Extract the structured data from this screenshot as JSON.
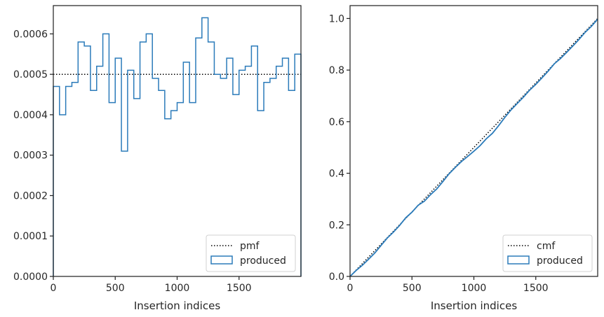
{
  "chart_data": [
    {
      "type": "histogram",
      "xlabel": "Insertion indices",
      "ylabel": "",
      "xlim": [
        0,
        2000
      ],
      "ylim": [
        0,
        0.00067
      ],
      "xticks": [
        "0",
        "500",
        "1000",
        "1500"
      ],
      "yticks": [
        "0.0000",
        "0.0001",
        "0.0002",
        "0.0003",
        "0.0004",
        "0.0005",
        "0.0006"
      ],
      "grid": false,
      "legend_position": "bottom-right",
      "series": [
        {
          "name": "pmf",
          "style": "dotted",
          "color": "#000000",
          "x": [
            0,
            2000
          ],
          "y": [
            0.0005,
            0.0005
          ]
        },
        {
          "name": "produced",
          "style": "step",
          "color": "#2b7bba",
          "bin_edges": [
            0,
            50,
            100,
            150,
            200,
            250,
            300,
            350,
            400,
            450,
            500,
            550,
            600,
            650,
            700,
            750,
            800,
            850,
            900,
            950,
            1000,
            1050,
            1100,
            1150,
            1200,
            1250,
            1300,
            1350,
            1400,
            1450,
            1500,
            1550,
            1600,
            1650,
            1700,
            1750,
            1800,
            1850,
            1900,
            1950,
            2000
          ],
          "values": [
            0.00047,
            0.0004,
            0.00047,
            0.00048,
            0.00058,
            0.00057,
            0.00046,
            0.00052,
            0.0006,
            0.00043,
            0.00054,
            0.00031,
            0.00051,
            0.00044,
            0.00058,
            0.0006,
            0.00049,
            0.00046,
            0.00039,
            0.00041,
            0.00043,
            0.00053,
            0.00043,
            0.00059,
            0.00064,
            0.00058,
            0.0005,
            0.00049,
            0.00054,
            0.00045,
            0.00051,
            0.00052,
            0.00057,
            0.00041,
            0.00048,
            0.00049,
            0.00052,
            0.00054,
            0.00046,
            0.00055
          ]
        }
      ]
    },
    {
      "type": "line",
      "xlabel": "Insertion indices",
      "ylabel": "",
      "xlim": [
        0,
        2000
      ],
      "ylim": [
        0,
        1.05
      ],
      "xticks": [
        "0",
        "500",
        "1000",
        "1500"
      ],
      "yticks": [
        "0.0",
        "0.2",
        "0.4",
        "0.6",
        "0.8",
        "1.0"
      ],
      "grid": false,
      "legend_position": "bottom-right",
      "series": [
        {
          "name": "cmf",
          "style": "dotted",
          "color": "#000000",
          "x": [
            0,
            2000
          ],
          "y": [
            0,
            1.0
          ]
        },
        {
          "name": "produced",
          "style": "line",
          "color": "#2b7bba",
          "x": [
            0,
            50,
            100,
            150,
            200,
            250,
            300,
            350,
            400,
            450,
            500,
            550,
            600,
            650,
            700,
            750,
            800,
            850,
            900,
            950,
            1000,
            1050,
            1100,
            1150,
            1200,
            1250,
            1300,
            1350,
            1400,
            1450,
            1500,
            1550,
            1600,
            1650,
            1700,
            1750,
            1800,
            1850,
            1900,
            1950,
            2000
          ],
          "y": [
            0,
            0.0235,
            0.0435,
            0.067,
            0.091,
            0.12,
            0.1485,
            0.1715,
            0.1975,
            0.2275,
            0.249,
            0.276,
            0.2915,
            0.317,
            0.339,
            0.368,
            0.398,
            0.4225,
            0.4455,
            0.465,
            0.4855,
            0.507,
            0.5335,
            0.555,
            0.5845,
            0.6165,
            0.6455,
            0.6705,
            0.695,
            0.722,
            0.7445,
            0.77,
            0.796,
            0.8245,
            0.845,
            0.869,
            0.8935,
            0.9195,
            0.947,
            0.97,
            0.9975
          ]
        }
      ]
    }
  ]
}
